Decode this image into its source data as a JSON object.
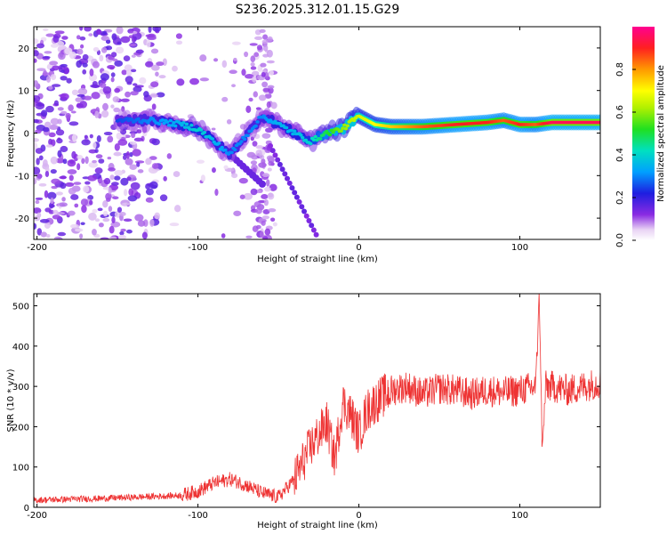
{
  "figure": {
    "title": "S236.2025.312.01.15.G29"
  },
  "chart_data": [
    {
      "type": "heatmap",
      "title": "S236.2025.312.01.15.G29",
      "xlabel": "Height of straight line (km)",
      "ylabel": "Frequency (Hz)",
      "xlim": [
        -202,
        150
      ],
      "ylim": [
        -25,
        25
      ],
      "xticks": [
        -200,
        -100,
        0,
        100
      ],
      "yticks": [
        -20,
        -10,
        0,
        10,
        20
      ],
      "tick_labels_x": [
        "-200",
        "-100",
        "0",
        "100"
      ],
      "tick_labels_y": [
        "-20",
        "-10",
        "0",
        "10",
        "20"
      ],
      "colorbar": {
        "label": "Normalized spectral amplitude",
        "range": [
          0,
          1
        ],
        "ticks": [
          0.0,
          0.2,
          0.4,
          0.6,
          0.8
        ],
        "tick_labels": [
          "0.0",
          "0.2",
          "0.4",
          "0.6",
          "0.8"
        ]
      },
      "ridge": [
        {
          "x": -150,
          "y": 3,
          "a": 0.25
        },
        {
          "x": -130,
          "y": 3,
          "a": 0.3
        },
        {
          "x": -110,
          "y": 2,
          "a": 0.35
        },
        {
          "x": -100,
          "y": 1,
          "a": 0.4
        },
        {
          "x": -90,
          "y": -2,
          "a": 0.35
        },
        {
          "x": -80,
          "y": -5,
          "a": 0.3
        },
        {
          "x": -60,
          "y": 4,
          "a": 0.3
        },
        {
          "x": -50,
          "y": 2,
          "a": 0.35
        },
        {
          "x": -40,
          "y": 0,
          "a": 0.35
        },
        {
          "x": -30,
          "y": -2,
          "a": 0.4
        },
        {
          "x": -20,
          "y": 0,
          "a": 0.5
        },
        {
          "x": -10,
          "y": 1,
          "a": 0.6
        },
        {
          "x": 0,
          "y": 4,
          "a": 0.65
        },
        {
          "x": 10,
          "y": 2,
          "a": 0.7
        },
        {
          "x": 20,
          "y": 1.5,
          "a": 0.75
        },
        {
          "x": 40,
          "y": 1.5,
          "a": 0.85
        },
        {
          "x": 60,
          "y": 2,
          "a": 0.9
        },
        {
          "x": 80,
          "y": 2.5,
          "a": 0.9
        },
        {
          "x": 90,
          "y": 3,
          "a": 0.85
        },
        {
          "x": 100,
          "y": 2,
          "a": 0.9
        },
        {
          "x": 110,
          "y": 2,
          "a": 0.85
        },
        {
          "x": 120,
          "y": 2.5,
          "a": 0.95
        },
        {
          "x": 150,
          "y": 2.5,
          "a": 0.95
        }
      ]
    },
    {
      "type": "line",
      "xlabel": "Height of straight line (km)",
      "ylabel": "SNR (10 * v/v)",
      "xlim": [
        -202,
        150
      ],
      "ylim": [
        0,
        530
      ],
      "xticks": [
        -200,
        -100,
        0,
        100
      ],
      "yticks": [
        0,
        100,
        200,
        300,
        400,
        500
      ],
      "tick_labels_x": [
        "-200",
        "-100",
        "0",
        "100"
      ],
      "tick_labels_y": [
        "0",
        "100",
        "200",
        "300",
        "400",
        "500"
      ],
      "color": "#ee3333",
      "series": [
        {
          "name": "SNR",
          "x": [
            -202,
            -180,
            -160,
            -140,
            -120,
            -110,
            -100,
            -90,
            -80,
            -70,
            -60,
            -50,
            -40,
            -30,
            -20,
            -15,
            -10,
            -5,
            0,
            5,
            10,
            20,
            30,
            40,
            50,
            60,
            70,
            80,
            90,
            100,
            110,
            112,
            114,
            116,
            120,
            130,
            140,
            150
          ],
          "values": [
            18,
            20,
            22,
            25,
            28,
            30,
            40,
            60,
            70,
            55,
            35,
            25,
            70,
            150,
            210,
            120,
            260,
            230,
            180,
            240,
            260,
            290,
            300,
            280,
            295,
            290,
            280,
            290,
            285,
            290,
            300,
            520,
            135,
            300,
            300,
            290,
            300,
            310
          ]
        }
      ]
    }
  ]
}
